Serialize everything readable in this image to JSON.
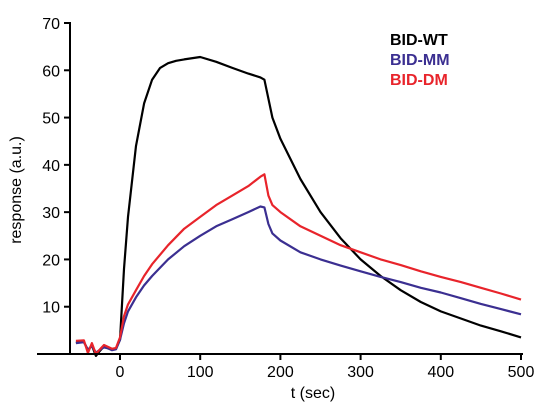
{
  "chart_data": {
    "type": "line",
    "xlabel": "t (sec)",
    "ylabel": "response (a.u.)",
    "xlim": [
      -55,
      500
    ],
    "ylim": [
      0,
      70
    ],
    "x_ticks": [
      0,
      100,
      200,
      300,
      400,
      500
    ],
    "y_ticks": [
      10,
      20,
      30,
      40,
      50,
      60,
      70
    ],
    "grid": false,
    "legend_position": "top-right",
    "series": [
      {
        "name": "BID-WT",
        "color": "#000000",
        "x": [
          -55,
          -45,
          -40,
          -35,
          -30,
          -25,
          -20,
          -15,
          -10,
          -5,
          0,
          5,
          10,
          20,
          30,
          40,
          50,
          60,
          70,
          80,
          100,
          120,
          140,
          160,
          175,
          180,
          190,
          200,
          225,
          250,
          275,
          300,
          325,
          350,
          375,
          400,
          425,
          450,
          475,
          500
        ],
        "values": [
          2.4,
          2.6,
          0.8,
          1.8,
          -0.4,
          0.7,
          1.6,
          1.2,
          0.9,
          1.2,
          3.0,
          18.0,
          29.0,
          44.0,
          53.0,
          58.0,
          60.5,
          61.5,
          62.0,
          62.3,
          62.8,
          61.8,
          60.5,
          59.3,
          58.5,
          58.0,
          50.0,
          45.5,
          37.0,
          30.0,
          24.5,
          20.0,
          16.5,
          13.5,
          11.0,
          9.0,
          7.5,
          6.0,
          4.8,
          3.5
        ]
      },
      {
        "name": "BID-MM",
        "color": "#3b2f91",
        "x": [
          -55,
          -45,
          -40,
          -35,
          -30,
          -25,
          -20,
          -15,
          -10,
          -5,
          0,
          5,
          10,
          20,
          30,
          40,
          60,
          80,
          100,
          120,
          140,
          160,
          175,
          180,
          185,
          190,
          200,
          225,
          250,
          275,
          300,
          325,
          350,
          375,
          400,
          425,
          450,
          475,
          500
        ],
        "values": [
          2.3,
          2.5,
          0.9,
          1.7,
          0.3,
          0.9,
          1.4,
          1.2,
          0.8,
          1.0,
          3.0,
          6.5,
          9.0,
          12.0,
          14.5,
          16.5,
          20.0,
          22.8,
          25.0,
          27.0,
          28.5,
          30.0,
          31.2,
          31.0,
          27.5,
          25.5,
          24.0,
          21.5,
          20.0,
          18.7,
          17.5,
          16.3,
          15.2,
          14.0,
          13.0,
          11.8,
          10.6,
          9.5,
          8.4
        ]
      },
      {
        "name": "BID-DM",
        "color": "#e8242b",
        "x": [
          -55,
          -45,
          -40,
          -35,
          -30,
          -25,
          -20,
          -15,
          -10,
          -5,
          0,
          5,
          10,
          20,
          30,
          40,
          60,
          80,
          100,
          120,
          140,
          160,
          175,
          180,
          185,
          190,
          200,
          225,
          250,
          275,
          300,
          325,
          350,
          375,
          400,
          425,
          450,
          475,
          500
        ],
        "values": [
          2.8,
          2.9,
          0.2,
          2.3,
          0.0,
          1.0,
          1.9,
          1.5,
          1.1,
          1.3,
          3.5,
          8.0,
          10.5,
          13.5,
          16.5,
          19.0,
          23.0,
          26.5,
          29.0,
          31.5,
          33.5,
          35.5,
          37.5,
          38.0,
          33.5,
          31.5,
          30.0,
          27.0,
          25.0,
          23.0,
          21.5,
          20.0,
          18.8,
          17.5,
          16.3,
          15.2,
          14.0,
          12.8,
          11.5
        ]
      }
    ]
  }
}
